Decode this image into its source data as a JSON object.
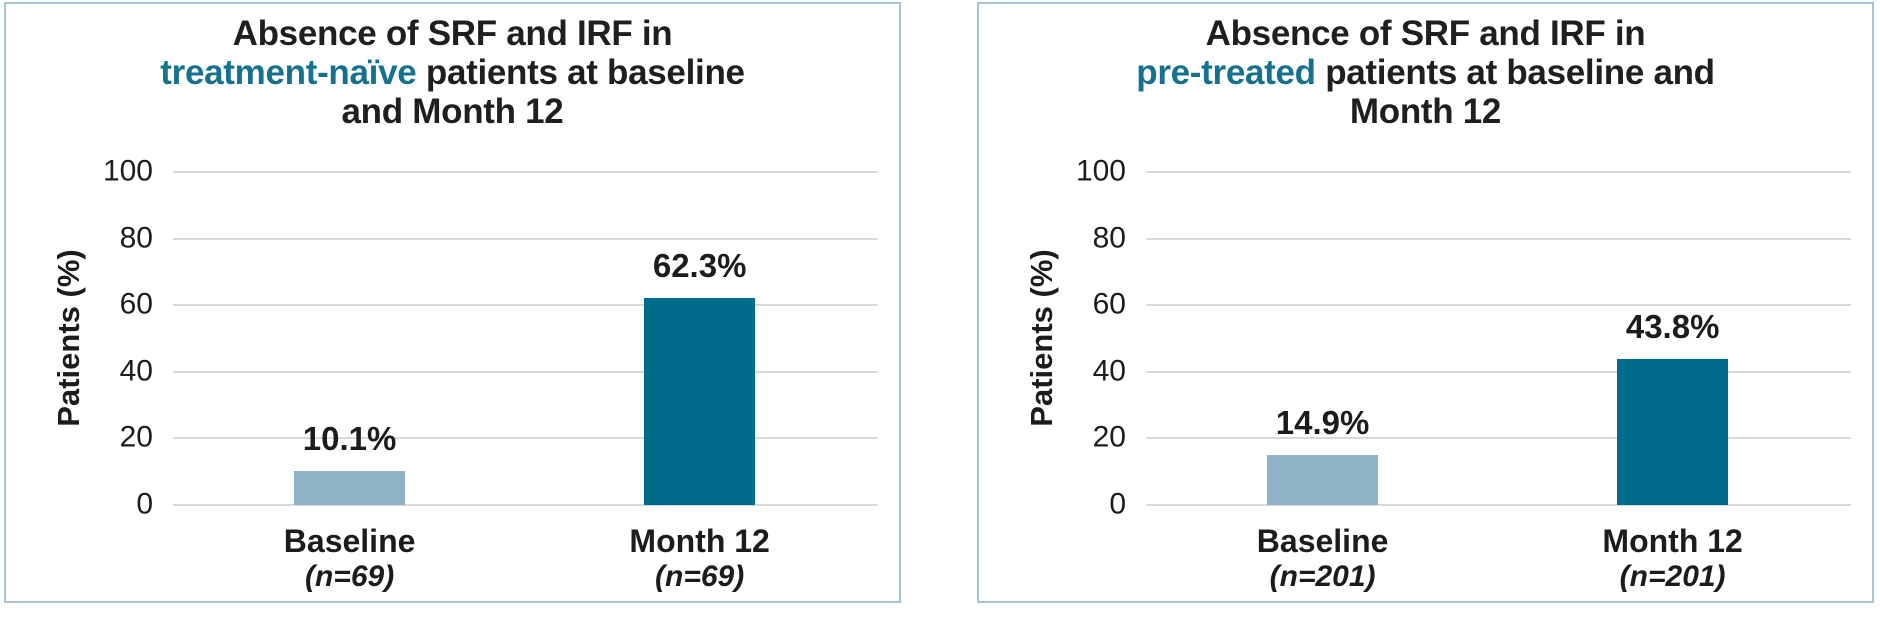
{
  "colors": {
    "highlight_teal": "#16718f",
    "bar_baseline_light": "#8fb3c7",
    "bar_month12_dark": "#006b8a",
    "panel_border": "#a6c3d3",
    "gridline": "#d9d9d9",
    "text": "#1c1c1c"
  },
  "chart_data": [
    {
      "type": "bar",
      "title": {
        "line1": "Absence of SRF and IRF in",
        "line2_highlight": "treatment-naïve",
        "line2_rest": " patients at baseline",
        "line3": "and Month 12"
      },
      "ylabel": "Patients (%)",
      "xlabel": "",
      "ylim": [
        0,
        100
      ],
      "yticks": [
        100,
        80,
        60,
        40,
        20,
        0
      ],
      "grid": "horizontal",
      "legend": "none",
      "categories": [
        "Baseline",
        "Month 12"
      ],
      "category_sublabels": [
        "(n=69)",
        "(n=69)"
      ],
      "values": [
        10.1,
        62.3
      ],
      "value_labels": [
        "10.1%",
        "62.3%"
      ],
      "bar_colors": [
        "#8fb3c7",
        "#006b8a"
      ]
    },
    {
      "type": "bar",
      "title": {
        "line1": "Absence of SRF and IRF in",
        "line2_highlight": "pre-treated",
        "line2_rest": " patients at baseline and",
        "line3": "Month 12"
      },
      "ylabel": "Patients (%)",
      "xlabel": "",
      "ylim": [
        0,
        100
      ],
      "yticks": [
        100,
        80,
        60,
        40,
        20,
        0
      ],
      "grid": "horizontal",
      "legend": "none",
      "categories": [
        "Baseline",
        "Month 12"
      ],
      "category_sublabels": [
        "(n=201)",
        "(n=201)"
      ],
      "values": [
        14.9,
        43.8
      ],
      "value_labels": [
        "14.9%",
        "43.8%"
      ],
      "bar_colors": [
        "#8fb3c7",
        "#006b8a"
      ]
    }
  ]
}
